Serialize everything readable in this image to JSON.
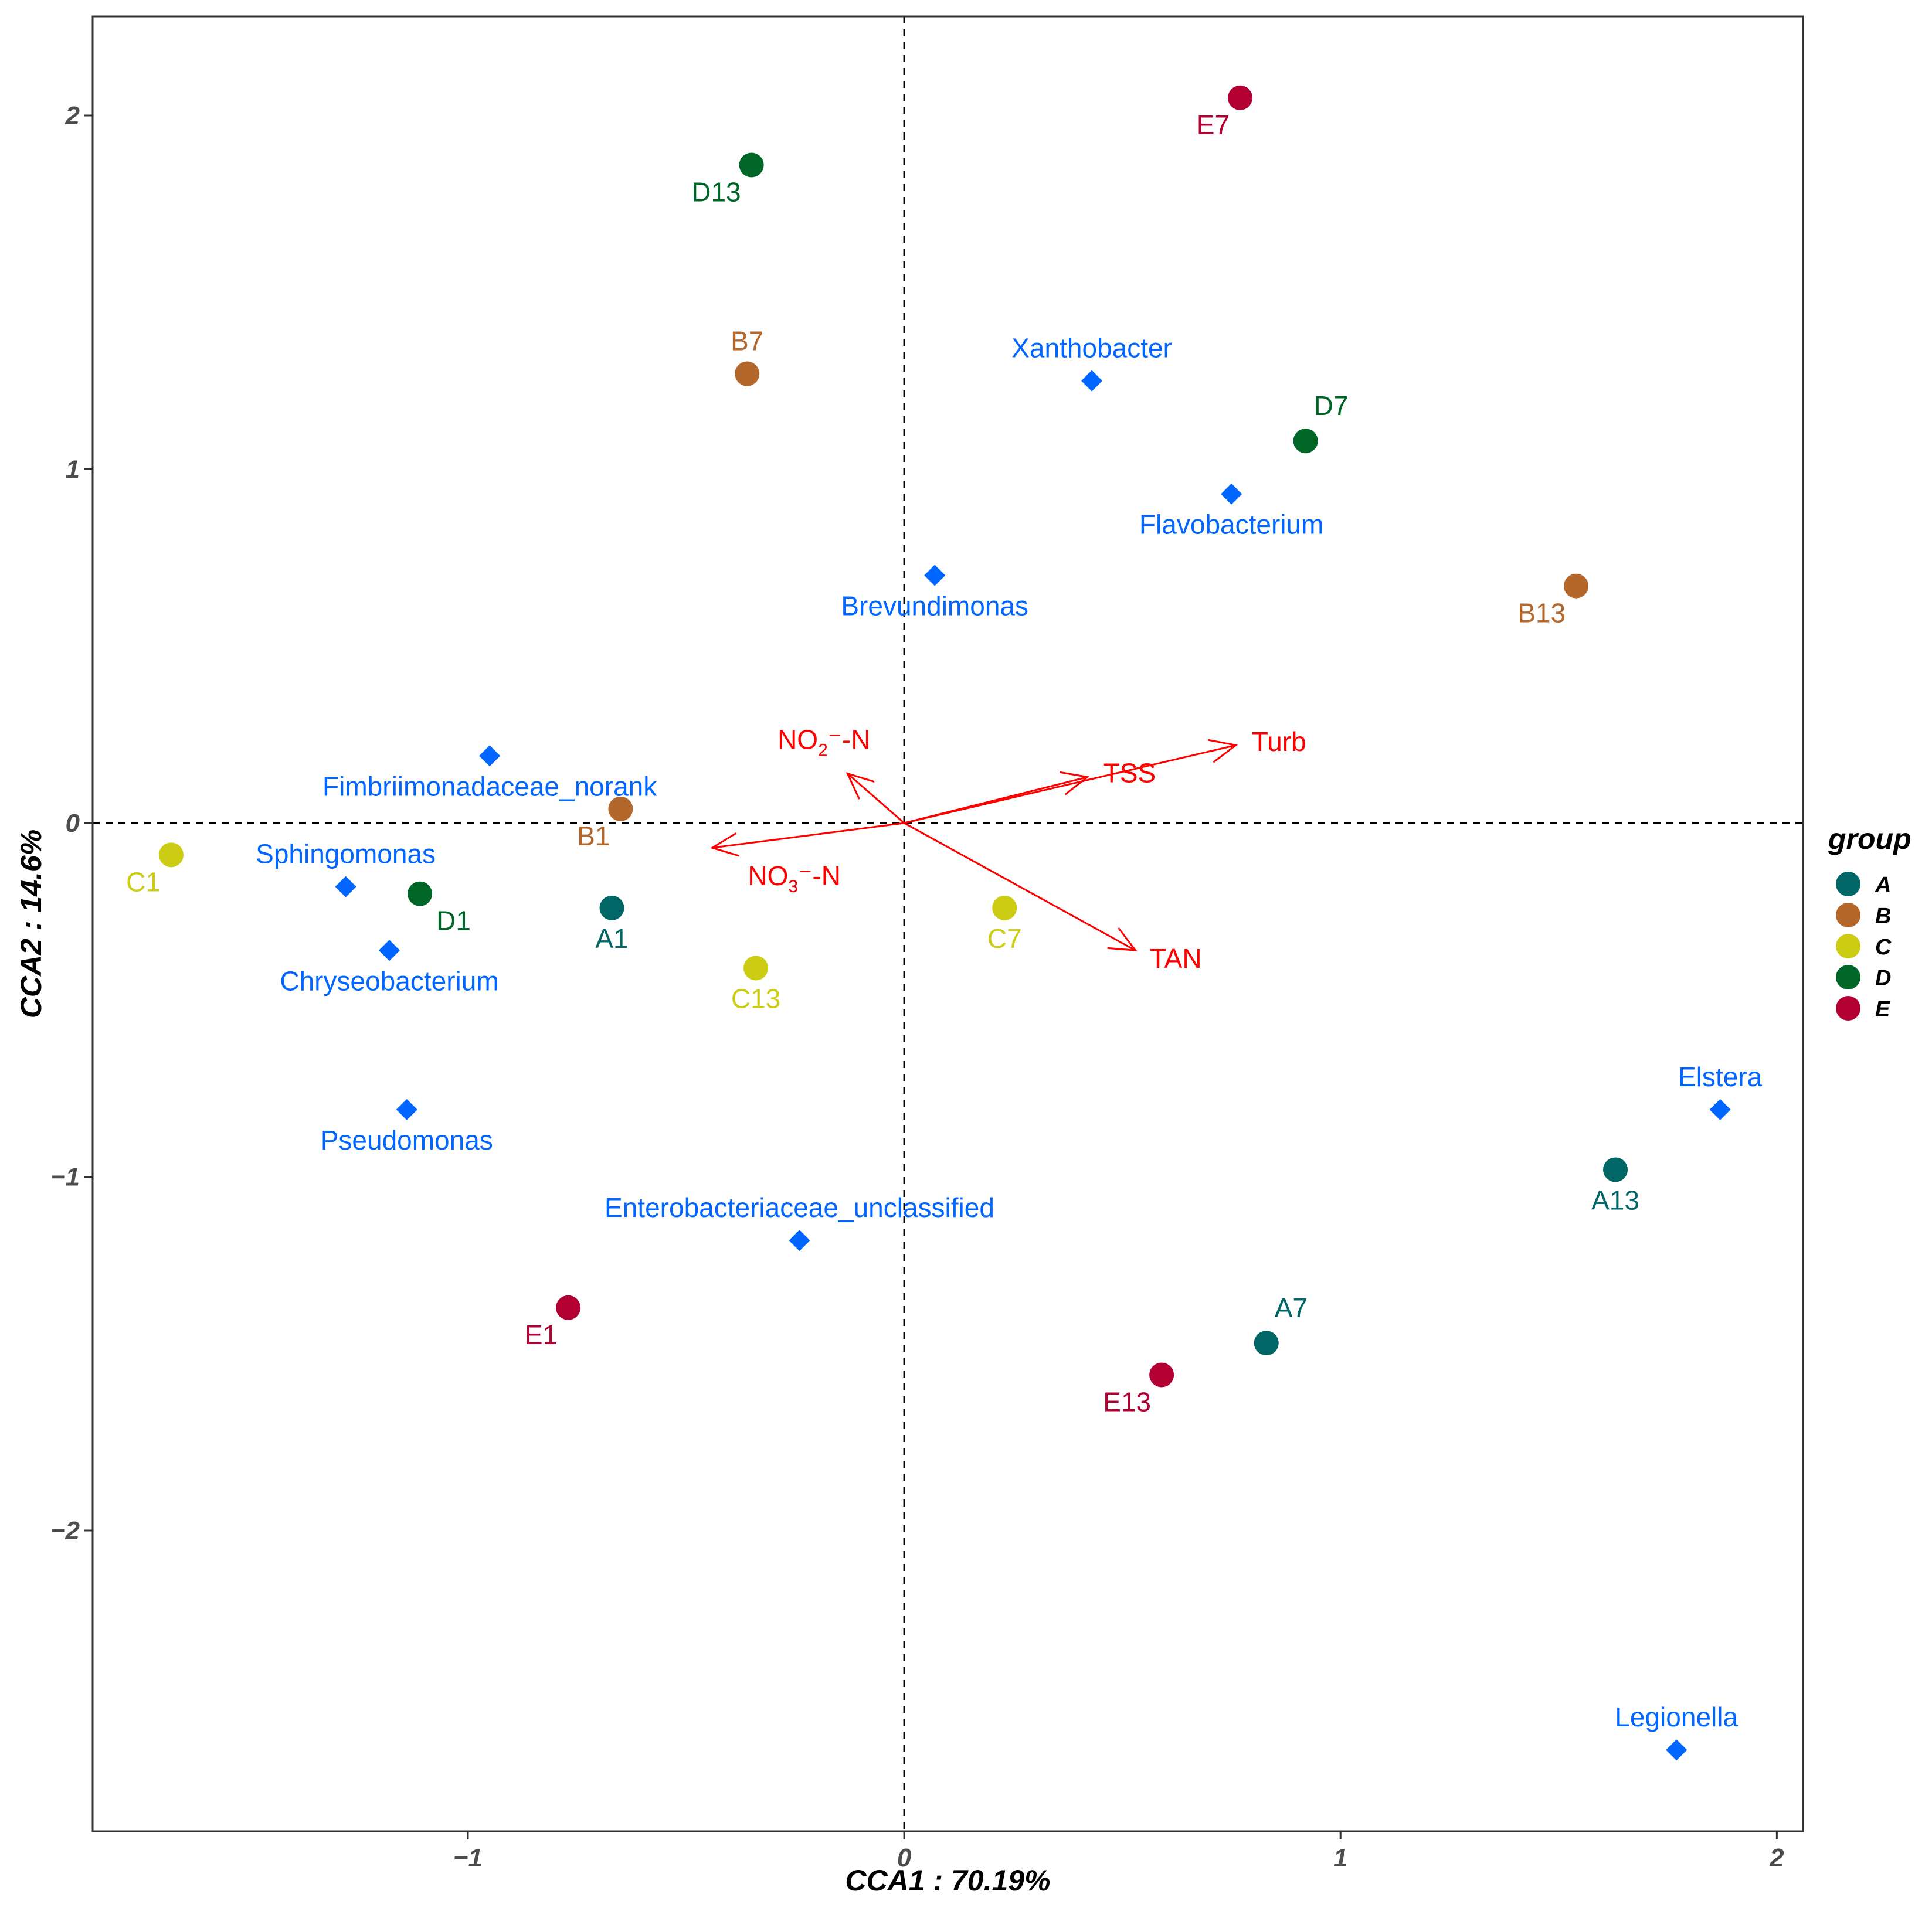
{
  "chart_data": {
    "type": "scatter",
    "subtype": "CCA biplot",
    "xlabel": "CCA1 : 70.19%",
    "ylabel": "CCA2 : 14.6%",
    "xlim": [
      -1.86,
      2.06
    ],
    "ylim": [
      -2.85,
      2.28
    ],
    "xticks": [
      {
        "value": -1,
        "label": "−1"
      },
      {
        "value": 0,
        "label": "0"
      },
      {
        "value": 1,
        "label": "1"
      },
      {
        "value": 2,
        "label": "2"
      }
    ],
    "yticks": [
      {
        "value": 2,
        "label": "2"
      },
      {
        "value": 1,
        "label": "1"
      },
      {
        "value": 0,
        "label": "0"
      },
      {
        "value": -1,
        "label": "−1"
      },
      {
        "value": -2,
        "label": "−2"
      }
    ],
    "reference_lines": {
      "x": 0,
      "y": 0,
      "style": "dashed"
    },
    "legend": {
      "title": "group",
      "position": "right",
      "entries": [
        {
          "group": "A",
          "label": "A",
          "color": "#006666"
        },
        {
          "group": "B",
          "label": "B",
          "color": "#b3672b"
        },
        {
          "group": "C",
          "label": "C",
          "color": "#cccc14"
        },
        {
          "group": "D",
          "label": "D",
          "color": "#006628"
        },
        {
          "group": "E",
          "label": "E",
          "color": "#b30033"
        }
      ]
    },
    "samples": [
      {
        "label": "E7",
        "group": "E",
        "x": 0.77,
        "y": 2.05,
        "label_pos": "lower-left"
      },
      {
        "label": "D13",
        "group": "D",
        "x": -0.35,
        "y": 1.86,
        "label_pos": "lower-left"
      },
      {
        "label": "B7",
        "group": "B",
        "x": -0.36,
        "y": 1.27,
        "label_pos": "above"
      },
      {
        "label": "D7",
        "group": "D",
        "x": 0.92,
        "y": 1.08,
        "label_pos": "upper-right"
      },
      {
        "label": "B13",
        "group": "B",
        "x": 1.54,
        "y": 0.67,
        "label_pos": "lower-left"
      },
      {
        "label": "B1",
        "group": "B",
        "x": -0.65,
        "y": 0.04,
        "label_pos": "lower-left"
      },
      {
        "label": "C1",
        "group": "C",
        "x": -1.68,
        "y": -0.09,
        "label_pos": "lower-left"
      },
      {
        "label": "D1",
        "group": "D",
        "x": -1.11,
        "y": -0.2,
        "label_pos": "lower-right"
      },
      {
        "label": "A1",
        "group": "A",
        "x": -0.67,
        "y": -0.24,
        "label_pos": "below"
      },
      {
        "label": "C7",
        "group": "C",
        "x": 0.23,
        "y": -0.24,
        "label_pos": "below"
      },
      {
        "label": "C13",
        "group": "C",
        "x": -0.34,
        "y": -0.41,
        "label_pos": "below"
      },
      {
        "label": "A13",
        "group": "A",
        "x": 1.63,
        "y": -0.98,
        "label_pos": "below"
      },
      {
        "label": "E1",
        "group": "E",
        "x": -0.77,
        "y": -1.37,
        "label_pos": "lower-left"
      },
      {
        "label": "A7",
        "group": "A",
        "x": 0.83,
        "y": -1.47,
        "label_pos": "upper-right"
      },
      {
        "label": "E13",
        "group": "E",
        "x": 0.59,
        "y": -1.56,
        "label_pos": "lower-left"
      }
    ],
    "species": [
      {
        "label": "Xanthobacter",
        "x": 0.43,
        "y": 1.25,
        "label_pos": "above"
      },
      {
        "label": "Flavobacterium",
        "x": 0.75,
        "y": 0.93,
        "label_pos": "below"
      },
      {
        "label": "Brevundimonas",
        "x": 0.07,
        "y": 0.7,
        "label_pos": "below"
      },
      {
        "label": "Fimbriimonadaceae_norank",
        "x": -0.95,
        "y": 0.19,
        "label_pos": "below"
      },
      {
        "label": "Sphingomonas",
        "x": -1.28,
        "y": -0.18,
        "label_pos": "above"
      },
      {
        "label": "Chryseobacterium",
        "x": -1.18,
        "y": -0.36,
        "label_pos": "below"
      },
      {
        "label": "Pseudomonas",
        "x": -1.14,
        "y": -0.81,
        "label_pos": "below"
      },
      {
        "label": "Elstera",
        "x": 1.87,
        "y": -0.81,
        "label_pos": "above"
      },
      {
        "label": "Enterobacteriaceae_unclassified",
        "x": -0.24,
        "y": -1.18,
        "label_pos": "above"
      },
      {
        "label": "Legionella",
        "x": 1.77,
        "y": -2.62,
        "label_pos": "above"
      }
    ],
    "environmental_vectors": [
      {
        "label": "Turb",
        "main": "Turb",
        "sub": "",
        "suffix": "",
        "x": 0.76,
        "y": 0.22
      },
      {
        "label": "TSS",
        "main": "TSS",
        "sub": "",
        "suffix": "",
        "x": 0.42,
        "y": 0.13
      },
      {
        "label": "NO2−-N",
        "main": "NO",
        "sub": "2",
        "suffix": "⁻-N",
        "x": -0.13,
        "y": 0.14
      },
      {
        "label": "NO3−-N",
        "main": "NO",
        "sub": "3",
        "suffix": "⁻-N",
        "x": -0.44,
        "y": -0.07
      },
      {
        "label": "TAN",
        "main": "TAN",
        "sub": "",
        "suffix": "",
        "x": 0.53,
        "y": -0.36
      }
    ],
    "colors": {
      "species": "#0066ff",
      "environmental": "#ff0000",
      "axis": "#333333"
    }
  }
}
